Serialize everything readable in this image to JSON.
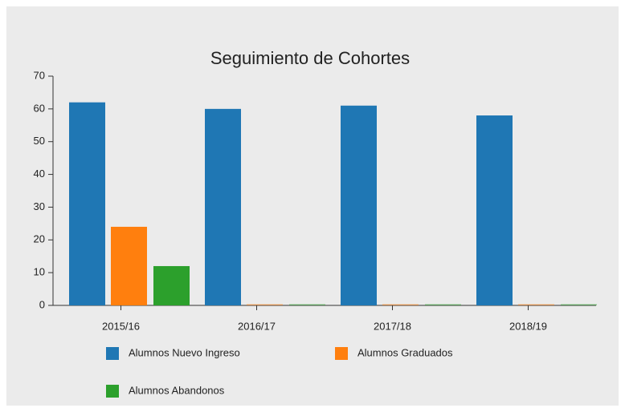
{
  "chart_data": {
    "type": "bar",
    "title": "Seguimiento de Cohortes",
    "categories": [
      "2015/16",
      "2016/17",
      "2017/18",
      "2018/19"
    ],
    "series": [
      {
        "name": "Alumnos Nuevo Ingreso",
        "color": "#1f77b4",
        "values": [
          62,
          60,
          61,
          58
        ]
      },
      {
        "name": "Alumnos Graduados",
        "color": "#ff7f0e",
        "values": [
          24,
          0,
          0,
          0
        ]
      },
      {
        "name": "Alumnos Abandonos",
        "color": "#2ca02c",
        "values": [
          12,
          0,
          0,
          0
        ]
      }
    ],
    "ylim": [
      0,
      70
    ],
    "yticks": [
      0,
      10,
      20,
      30,
      40,
      50,
      60,
      70
    ]
  }
}
